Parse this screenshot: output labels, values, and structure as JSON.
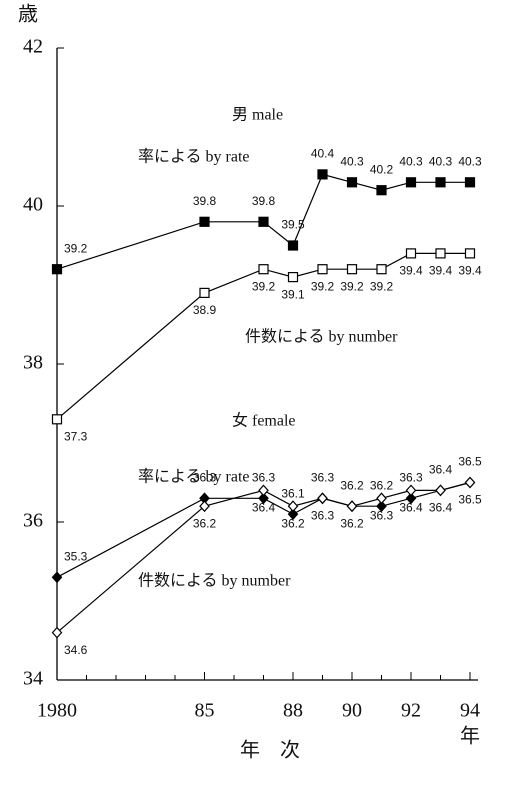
{
  "chart_data": {
    "type": "line",
    "y_unit": "歳",
    "xlabel": "年　次",
    "x_unit": "年",
    "annotations": [
      "男 male",
      "女 female"
    ],
    "xlim": [
      1980,
      1994
    ],
    "xticks": [
      {
        "value": 1980,
        "label": "1980"
      },
      {
        "value": 1985,
        "label": "85"
      },
      {
        "value": 1988,
        "label": "88"
      },
      {
        "value": 1990,
        "label": "90"
      },
      {
        "value": 1992,
        "label": "92"
      },
      {
        "value": 1994,
        "label": "94"
      }
    ],
    "minor_xticks": [
      1981,
      1982,
      1983,
      1984,
      1986,
      1987,
      1989,
      1991,
      1993
    ],
    "ylim": [
      34,
      42
    ],
    "yticks": [
      34,
      36,
      38,
      40,
      42
    ],
    "x": [
      1980,
      1985,
      1987,
      1988,
      1989,
      1990,
      1991,
      1992,
      1993,
      1994
    ],
    "series": [
      {
        "name": "率による by rate",
        "color": "#000000",
        "marker": "square",
        "filled": true,
        "values": [
          39.2,
          39.8,
          39.8,
          39.5,
          40.4,
          40.3,
          40.2,
          40.3,
          40.3,
          40.3
        ]
      },
      {
        "name": "件数による by number",
        "color": "#000000",
        "marker": "square",
        "filled": false,
        "values": [
          37.3,
          38.9,
          39.2,
          39.1,
          39.2,
          39.2,
          39.2,
          39.4,
          39.4,
          39.4
        ]
      },
      {
        "name": "率による by rate",
        "color": "#000000",
        "marker": "diamond",
        "filled": true,
        "values": [
          35.3,
          36.3,
          36.3,
          36.1,
          36.3,
          36.2,
          36.2,
          36.3,
          36.4,
          36.5
        ]
      },
      {
        "name": "件数による by number",
        "color": "#000000",
        "marker": "diamond",
        "filled": false,
        "values": [
          34.6,
          36.2,
          36.4,
          36.2,
          36.3,
          36.2,
          36.3,
          36.4,
          36.4,
          36.5
        ]
      }
    ]
  }
}
